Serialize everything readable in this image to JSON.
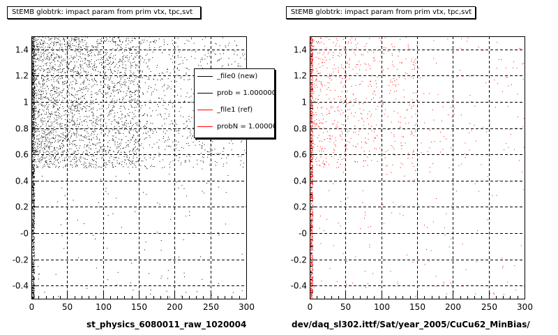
{
  "panels": {
    "left": {
      "title": "StEMB globtrk: impact param from prim vtx, tpc,svt",
      "xcaption": "st_physics_6080011_raw_1020004"
    },
    "right": {
      "title": "StEMB globtrk: impact param from prim vtx, tpc,svt",
      "xcaption": "dev/daq_sl302.ittf/Sat/year_2005/CuCu62_MinBias/"
    }
  },
  "legend": {
    "entries": [
      {
        "label": "_file0 (new)",
        "color": "#000000"
      },
      {
        "label": "prob = 1.000000",
        "color": "#000000"
      },
      {
        "label": "_file1 (ref)",
        "color": "#ff0000"
      },
      {
        "label": "probN = 1.000000",
        "color": "#ff0000"
      }
    ]
  },
  "chart_data": [
    {
      "type": "scatter",
      "title": "StEMB globtrk: impact param from prim vtx, tpc,svt",
      "xlabel": "st_physics_6080011_raw_1020004",
      "ylabel": "",
      "xlim": [
        0,
        300
      ],
      "ylim": [
        -0.5,
        1.5
      ],
      "xticks": [
        0,
        50,
        100,
        150,
        200,
        250,
        300
      ],
      "yticks": [
        -0.4,
        -0.2,
        0,
        0.2,
        0.4,
        0.6,
        0.8,
        1,
        1.2,
        1.4
      ],
      "ytick_labels": [
        "-0.4",
        "-0.2",
        "-0",
        "0.2",
        "0.4",
        "0.6",
        "0.8",
        "1",
        "1.2",
        "1.4"
      ],
      "grid": true,
      "series_color": "#000000",
      "density_regions": [
        {
          "x": [
            0,
            4
          ],
          "y": [
            -0.5,
            1.5
          ],
          "level": "dense edge"
        },
        {
          "x": [
            0,
            150
          ],
          "y": [
            0.5,
            1.5
          ],
          "level": "medium"
        },
        {
          "x": [
            150,
            300
          ],
          "y": [
            0.5,
            1.5
          ],
          "level": "sparse"
        },
        {
          "x": [
            0,
            300
          ],
          "y": [
            -0.5,
            0.5
          ],
          "level": "very sparse"
        }
      ]
    },
    {
      "type": "scatter",
      "title": "StEMB globtrk: impact param from prim vtx, tpc,svt",
      "xlabel": "dev/daq_sl302.ittf/Sat/year_2005/CuCu62_MinBias/",
      "ylabel": "",
      "xlim": [
        0,
        300
      ],
      "ylim": [
        -0.5,
        1.5
      ],
      "xticks": [
        0,
        50,
        100,
        150,
        200,
        250,
        300
      ],
      "yticks": [
        -0.4,
        -0.2,
        0,
        0.2,
        0.4,
        0.6,
        0.8,
        1,
        1.2,
        1.4
      ],
      "ytick_labels": [
        "-0.4",
        "-0.2",
        "-0",
        "0.2",
        "0.4",
        "0.6",
        "0.8",
        "1",
        "1.2",
        "1.4"
      ],
      "grid": true,
      "series_color": "#ff0000",
      "density_regions": [
        {
          "x": [
            0,
            4
          ],
          "y": [
            -0.5,
            1.5
          ],
          "level": "dense edge"
        },
        {
          "x": [
            0,
            150
          ],
          "y": [
            0.5,
            1.5
          ],
          "level": "sparse"
        },
        {
          "x": [
            150,
            300
          ],
          "y": [
            0.5,
            1.5
          ],
          "level": "very sparse"
        },
        {
          "x": [
            0,
            300
          ],
          "y": [
            -0.5,
            0.5
          ],
          "level": "very sparse"
        }
      ]
    }
  ]
}
